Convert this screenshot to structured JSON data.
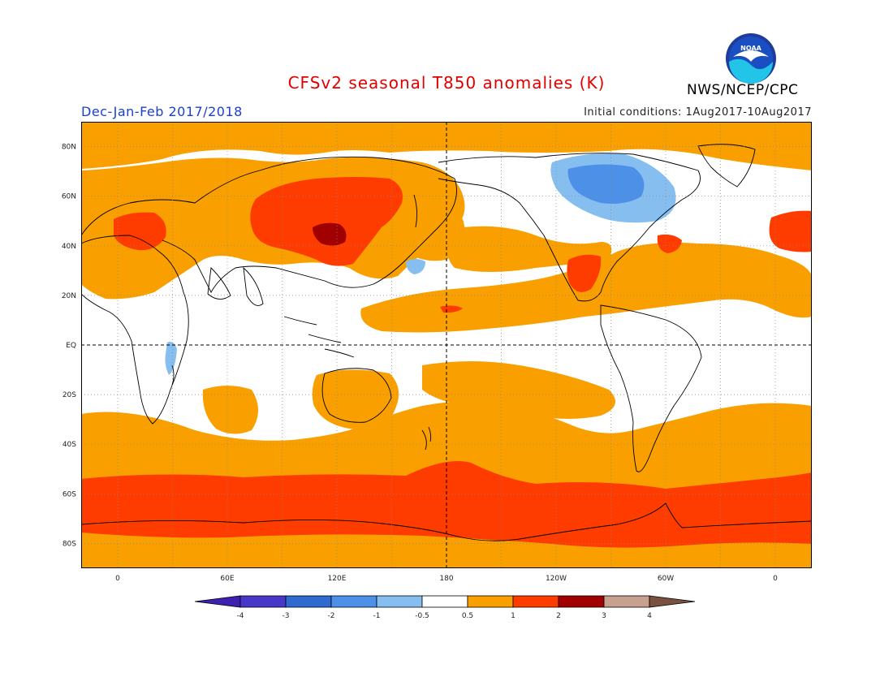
{
  "header": {
    "title": "CFSv2 seasonal T850 anomalies (K)",
    "period": "Dec-Jan-Feb 2017/2018",
    "initial_conditions": "Initial conditions: 1Aug2017-10Aug2017",
    "agency": "NWS/NCEP/CPC",
    "logo_text": "NOAA"
  },
  "colors": {
    "title": "#e00000",
    "period": "#1a3fd0",
    "ocean_default": "#ffffff",
    "land_outline": "#000000"
  },
  "map": {
    "projection": "cylindrical equidistant",
    "lon_range": [
      -20,
      380
    ],
    "lat_range": [
      -90,
      90
    ],
    "lat_labels": [
      "80N",
      "60N",
      "40N",
      "20N",
      "EQ",
      "20S",
      "40S",
      "60S",
      "80S"
    ],
    "lon_labels": [
      "0",
      "60E",
      "120E",
      "180",
      "120W",
      "60W",
      "0"
    ],
    "grid": "dotted",
    "reference_lines": [
      "equator dashed",
      "180 meridian dashed"
    ]
  },
  "legend": {
    "labels": [
      "-4",
      "-3",
      "-2",
      "-1",
      "-0.5",
      "0.5",
      "1",
      "2",
      "3",
      "4"
    ],
    "bin_colors": [
      "#4020b0",
      "#4838c8",
      "#2e6ad0",
      "#4c90e8",
      "#86bef0",
      "#ffffff",
      "#f9a000",
      "#ff3c00",
      "#a00000",
      "#c8a090",
      "#7a5040"
    ]
  },
  "anomaly_colors": {
    "warm_0_5_1": "#f9a000",
    "warm_1_2": "#ff3c00",
    "warm_2_3": "#a00000",
    "cool_0_5_1": "#86bef0",
    "cool_1_2": "#4c90e8"
  }
}
